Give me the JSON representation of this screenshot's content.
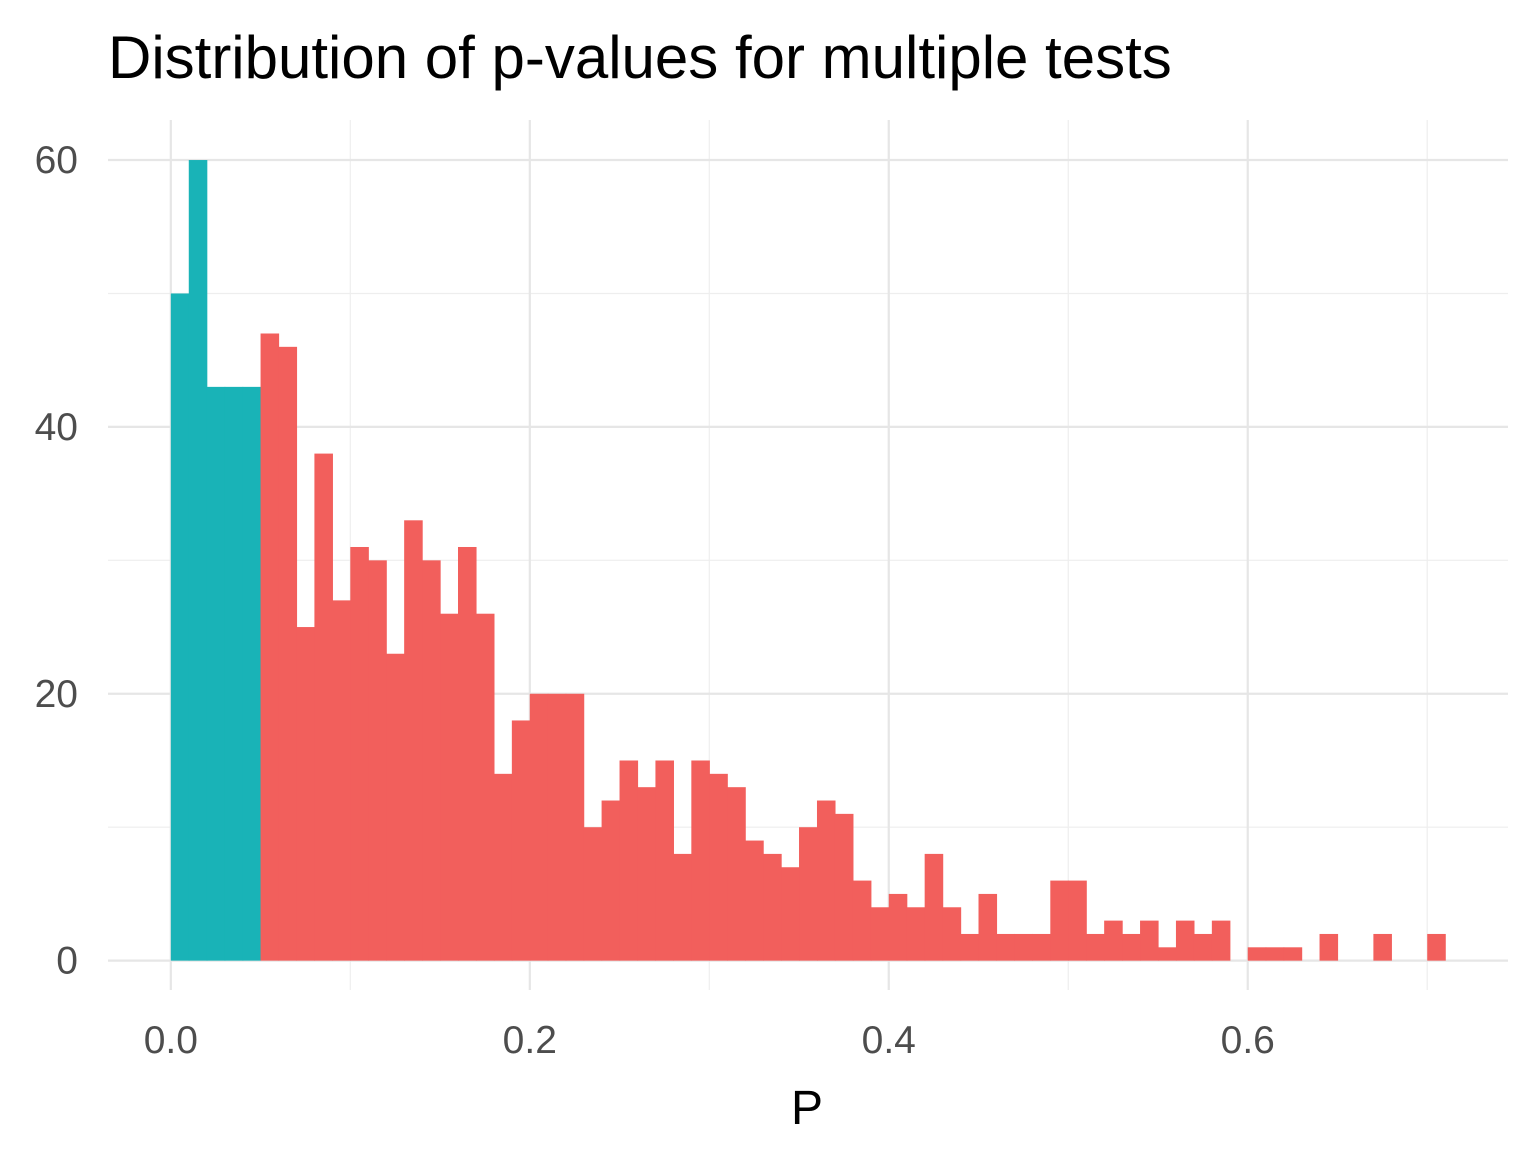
{
  "chart_data": {
    "type": "bar",
    "title": "Distribution of p-values for multiple tests",
    "xlabel": "P",
    "ylabel": "",
    "xlim": [
      -0.035,
      0.745
    ],
    "ylim": [
      -2.2,
      63.0
    ],
    "x_ticks": [
      0.0,
      0.2,
      0.4,
      0.6
    ],
    "x_tick_labels": [
      "0.0",
      "0.2",
      "0.4",
      "0.6"
    ],
    "x_minor_ticks": [
      0.1,
      0.3,
      0.5,
      0.7
    ],
    "y_ticks": [
      0,
      20,
      40,
      60
    ],
    "y_tick_labels": [
      "0",
      "20",
      "40",
      "60"
    ],
    "y_minor_ticks": [
      10,
      30,
      50
    ],
    "bin_width": 0.01,
    "x_start": 0.0,
    "colors": {
      "significant": "#19b3b7",
      "not_significant": "#f25f5c"
    },
    "grid": true,
    "series": [
      {
        "name": "",
        "color_key": "significant",
        "bins": [
          {
            "x": 0.0,
            "count": 50
          },
          {
            "x": 0.01,
            "count": 60
          },
          {
            "x": 0.02,
            "count": 43
          },
          {
            "x": 0.03,
            "count": 43
          },
          {
            "x": 0.04,
            "count": 43
          }
        ]
      },
      {
        "name": "",
        "color_key": "not_significant",
        "bins": [
          {
            "x": 0.05,
            "count": 47
          },
          {
            "x": 0.06,
            "count": 46
          },
          {
            "x": 0.07,
            "count": 25
          },
          {
            "x": 0.08,
            "count": 38
          },
          {
            "x": 0.09,
            "count": 27
          },
          {
            "x": 0.1,
            "count": 31
          },
          {
            "x": 0.11,
            "count": 30
          },
          {
            "x": 0.12,
            "count": 23
          },
          {
            "x": 0.13,
            "count": 33
          },
          {
            "x": 0.14,
            "count": 30
          },
          {
            "x": 0.15,
            "count": 26
          },
          {
            "x": 0.16,
            "count": 31
          },
          {
            "x": 0.17,
            "count": 26
          },
          {
            "x": 0.18,
            "count": 14
          },
          {
            "x": 0.19,
            "count": 18
          },
          {
            "x": 0.2,
            "count": 20
          },
          {
            "x": 0.21,
            "count": 20
          },
          {
            "x": 0.22,
            "count": 20
          },
          {
            "x": 0.23,
            "count": 10
          },
          {
            "x": 0.24,
            "count": 12
          },
          {
            "x": 0.25,
            "count": 15
          },
          {
            "x": 0.26,
            "count": 13
          },
          {
            "x": 0.27,
            "count": 15
          },
          {
            "x": 0.28,
            "count": 8
          },
          {
            "x": 0.29,
            "count": 15
          },
          {
            "x": 0.3,
            "count": 14
          },
          {
            "x": 0.31,
            "count": 13
          },
          {
            "x": 0.32,
            "count": 9
          },
          {
            "x": 0.33,
            "count": 8
          },
          {
            "x": 0.34,
            "count": 7
          },
          {
            "x": 0.35,
            "count": 10
          },
          {
            "x": 0.36,
            "count": 12
          },
          {
            "x": 0.37,
            "count": 11
          },
          {
            "x": 0.38,
            "count": 6
          },
          {
            "x": 0.39,
            "count": 4
          },
          {
            "x": 0.4,
            "count": 5
          },
          {
            "x": 0.41,
            "count": 4
          },
          {
            "x": 0.42,
            "count": 8
          },
          {
            "x": 0.43,
            "count": 4
          },
          {
            "x": 0.44,
            "count": 2
          },
          {
            "x": 0.45,
            "count": 5
          },
          {
            "x": 0.46,
            "count": 2
          },
          {
            "x": 0.47,
            "count": 2
          },
          {
            "x": 0.48,
            "count": 2
          },
          {
            "x": 0.49,
            "count": 6
          },
          {
            "x": 0.5,
            "count": 6
          },
          {
            "x": 0.51,
            "count": 2
          },
          {
            "x": 0.52,
            "count": 3
          },
          {
            "x": 0.53,
            "count": 2
          },
          {
            "x": 0.54,
            "count": 3
          },
          {
            "x": 0.55,
            "count": 1
          },
          {
            "x": 0.56,
            "count": 3
          },
          {
            "x": 0.57,
            "count": 2
          },
          {
            "x": 0.58,
            "count": 3
          },
          {
            "x": 0.59,
            "count": 0
          },
          {
            "x": 0.6,
            "count": 1
          },
          {
            "x": 0.61,
            "count": 1
          },
          {
            "x": 0.62,
            "count": 1
          },
          {
            "x": 0.63,
            "count": 0
          },
          {
            "x": 0.64,
            "count": 2
          },
          {
            "x": 0.65,
            "count": 0
          },
          {
            "x": 0.66,
            "count": 0
          },
          {
            "x": 0.67,
            "count": 2
          },
          {
            "x": 0.68,
            "count": 0
          },
          {
            "x": 0.69,
            "count": 0
          },
          {
            "x": 0.7,
            "count": 2
          }
        ]
      }
    ]
  }
}
